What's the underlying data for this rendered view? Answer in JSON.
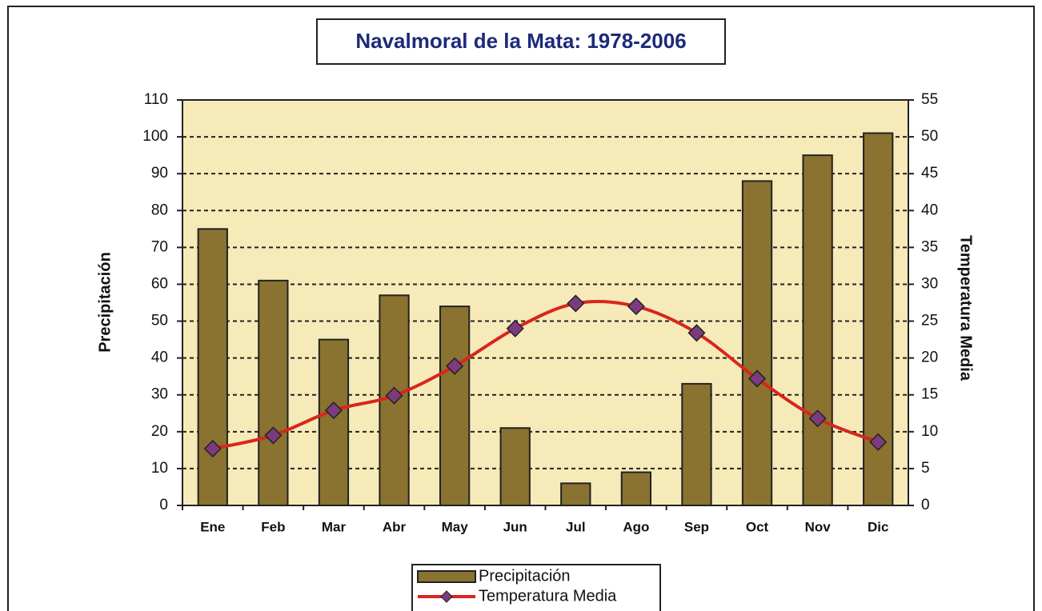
{
  "chart_data": {
    "type": "bar_line",
    "title": "Navalmoral de la Mata: 1978-2006",
    "categories": [
      "Ene",
      "Feb",
      "Mar",
      "Abr",
      "May",
      "Jun",
      "Jul",
      "Ago",
      "Sep",
      "Oct",
      "Nov",
      "Dic"
    ],
    "series": [
      {
        "name": "Precipitación",
        "type": "bar",
        "color": "#8a7230",
        "axis": "y",
        "values": [
          75,
          61,
          45,
          57,
          54,
          21,
          6,
          9,
          33,
          88,
          95,
          101
        ]
      },
      {
        "name": "Temperatura Media",
        "type": "line",
        "color": "#d8261c",
        "marker_color": "#7b3b7d",
        "axis": "y2",
        "values": [
          7.7,
          9.5,
          12.9,
          14.9,
          18.9,
          24,
          27.4,
          27,
          23.4,
          17.2,
          11.8,
          8.6
        ]
      }
    ],
    "ylabel": "Precipitación",
    "y2label": "Temperatura Media",
    "ylim": [
      0,
      110
    ],
    "yticks": [
      0,
      10,
      20,
      30,
      40,
      50,
      60,
      70,
      80,
      90,
      100,
      110
    ],
    "y2lim": [
      0,
      55
    ],
    "y2ticks": [
      0,
      5,
      10,
      15,
      20,
      25,
      30,
      35,
      40,
      45,
      50,
      55
    ],
    "grid": true,
    "legend": "bottom"
  }
}
